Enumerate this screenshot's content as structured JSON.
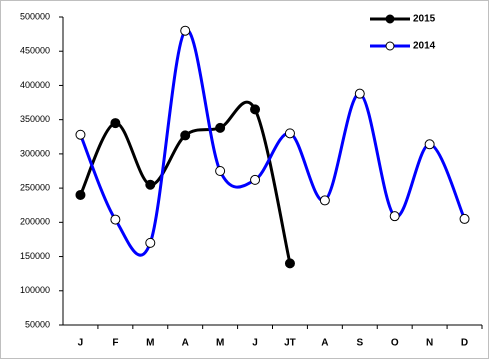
{
  "chart_data": {
    "type": "line",
    "smooth": true,
    "categories": [
      "J",
      "F",
      "M",
      "A",
      "M",
      "J",
      "JT",
      "A",
      "S",
      "O",
      "N",
      "D"
    ],
    "series": [
      {
        "name": "2015",
        "color": "#000000",
        "marker_fill": "#000000",
        "values": [
          240000,
          345000,
          255000,
          327000,
          338000,
          365000,
          140000,
          null,
          null,
          null,
          null,
          null
        ]
      },
      {
        "name": "2014",
        "color": "#0000ff",
        "marker_fill": "#ffffff",
        "values": [
          328000,
          204000,
          170000,
          480000,
          275000,
          262000,
          330000,
          232000,
          388000,
          209000,
          314000,
          205000
        ]
      }
    ],
    "ylim": [
      50000,
      500000
    ],
    "yticks": [
      50000,
      100000,
      150000,
      200000,
      250000,
      300000,
      350000,
      400000,
      450000,
      500000
    ],
    "grid": false,
    "legend": "top-right"
  }
}
